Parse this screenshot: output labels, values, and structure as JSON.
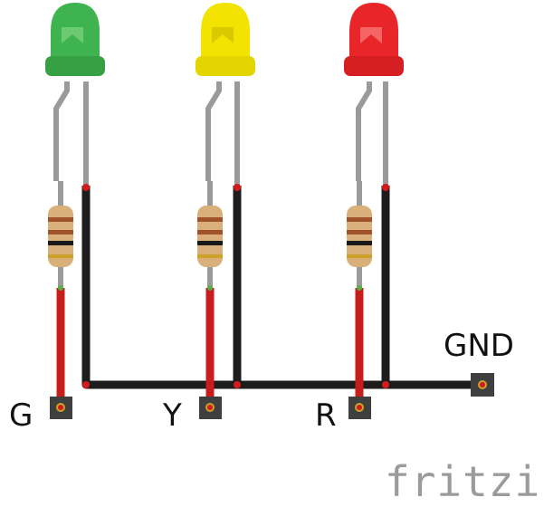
{
  "diagram": {
    "leds": [
      {
        "label": "G",
        "color": "#3fb34f",
        "highlight": "#8fdc8f"
      },
      {
        "label": "Y",
        "color": "#f2e400",
        "highlight": "#fff89a"
      },
      {
        "label": "R",
        "color": "#e8262a",
        "highlight": "#ff8e8e"
      }
    ],
    "ground_label": "GND",
    "wire_colors": {
      "signal": "#c91c1c",
      "ground": "#1d1d1d",
      "lead": "#9a9a9a"
    },
    "resistor_colors": {
      "body": "#d9b07a",
      "bands": [
        "#a0522d",
        "#1a1a1a",
        "#a0522d",
        "#c9a227"
      ]
    },
    "brand": "fritzing"
  }
}
